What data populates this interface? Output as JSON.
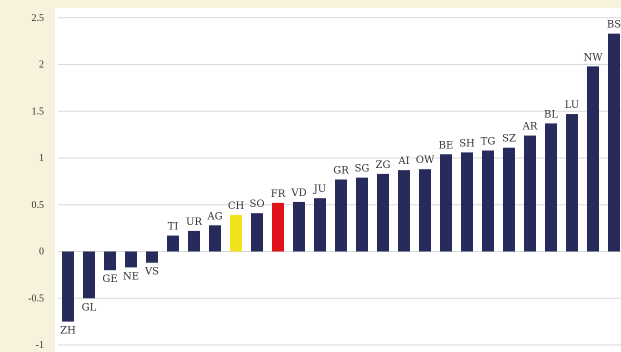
{
  "chart_data": {
    "type": "bar",
    "title": "",
    "xlabel": "",
    "ylabel": "",
    "ylim": [
      -1,
      2.5
    ],
    "yticks": [
      -1,
      -0.5,
      0,
      0.5,
      1,
      1.5,
      2,
      2.5
    ],
    "ytick_labels": [
      "-1",
      "-0.5",
      "0",
      "0.5",
      "1",
      "1.5",
      "2",
      "2.5"
    ],
    "grid": true,
    "legend": "none",
    "colors": {
      "default": "#262b5c",
      "CH": "#f2e21b",
      "FR": "#e0131b",
      "background": "#f7f2dc",
      "plot": "#ffffff",
      "grid": "#d9d9d9"
    },
    "categories": [
      "ZH",
      "GL",
      "GE",
      "NE",
      "VS",
      "TI",
      "UR",
      "AG",
      "CH",
      "SO",
      "FR",
      "VD",
      "JU",
      "GR",
      "SG",
      "ZG",
      "AI",
      "OW",
      "BE",
      "SH",
      "TG",
      "SZ",
      "AR",
      "BL",
      "LU",
      "NW",
      "BS"
    ],
    "values": [
      -0.75,
      -0.5,
      -0.2,
      -0.17,
      -0.12,
      0.17,
      0.22,
      0.28,
      0.39,
      0.41,
      0.52,
      0.53,
      0.57,
      0.77,
      0.79,
      0.83,
      0.87,
      0.88,
      1.04,
      1.06,
      1.08,
      1.11,
      1.24,
      1.37,
      1.47,
      1.98,
      2.33
    ],
    "highlight": {
      "CH": "#f2e21b",
      "FR": "#e0131b"
    }
  }
}
